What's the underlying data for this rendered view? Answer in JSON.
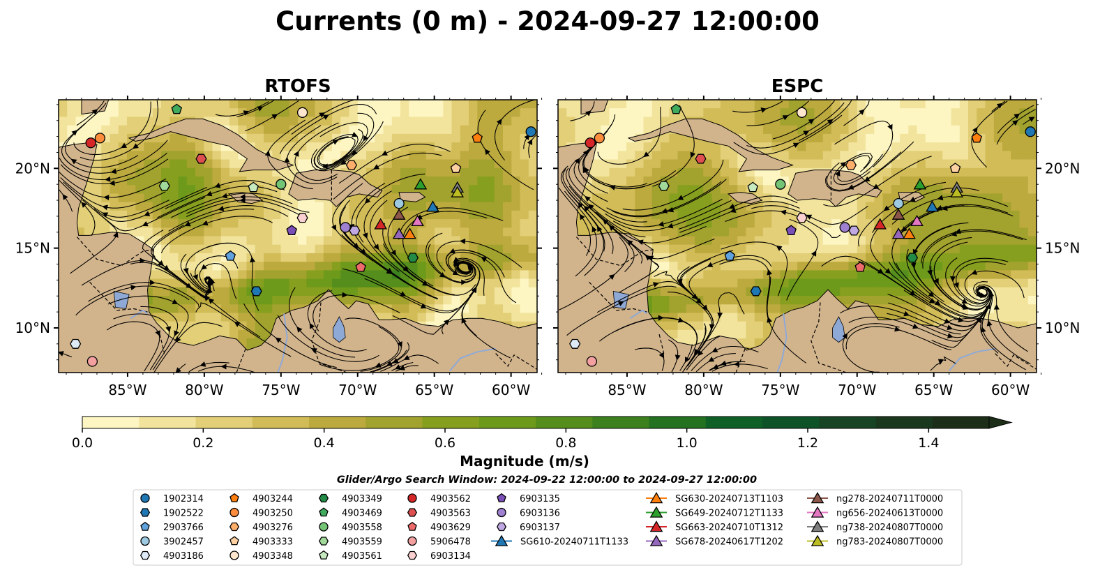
{
  "title": "Currents (0 m) - 2024-09-27 12:00:00",
  "panels": [
    "RTOFS",
    "ESPC"
  ],
  "colors": {
    "land": "#d2b48c",
    "river": "#8fa9d6",
    "cmap": [
      "#fdf6c3",
      "#f2e49d",
      "#e2cf77",
      "#d2bc58",
      "#bcaa3e",
      "#a2a22e",
      "#879f1e",
      "#6e9a1c",
      "#558e1c",
      "#3c811e",
      "#237121",
      "#0e6026",
      "#0e5228",
      "#174424",
      "#1a381e",
      "#1c2e18"
    ],
    "marker_palette": {
      "blue": "#1f77b4",
      "orange": "#ff7f0e",
      "green": "#2ca02c",
      "red": "#d62728",
      "purple": "#9467bd",
      "brown": "#8c564b",
      "pink": "#e377c2",
      "gray": "#7f7f7f",
      "olive": "#bcbd22",
      "dark_blue": "#1f77b4",
      "light_blue": "#aec7e8",
      "light_orange": "#ffbb78",
      "light_green": "#98df8a",
      "light_red": "#ff9896",
      "light_purple": "#c5b0d5",
      "light_pink": "#f7b6d2"
    }
  },
  "chart_data": {
    "type": "streamplot-map",
    "x_ticks": [
      "85°W",
      "80°W",
      "75°W",
      "70°W",
      "65°W",
      "60°W"
    ],
    "x_tick_values": [
      -85,
      -80,
      -75,
      -70,
      -65,
      -60
    ],
    "y_ticks": [
      "20°N",
      "15°N",
      "10°N"
    ],
    "y_tick_values": [
      20,
      15,
      10
    ],
    "xlim": [
      -89.5,
      -58.3
    ],
    "ylim": [
      7.2,
      24.3
    ],
    "colorbar": {
      "label": "Magnitude (m/s)",
      "ticks": [
        "0.0",
        "0.2",
        "0.4",
        "0.6",
        "0.8",
        "1.0",
        "1.2",
        "1.4"
      ],
      "tick_values": [
        0,
        0.2,
        0.4,
        0.6,
        0.8,
        1.0,
        1.2,
        1.4
      ],
      "range": [
        0,
        1.5
      ],
      "extend": "max"
    },
    "search_window": "Glider/Argo Search Window: 2024-09-22 12:00:00 to 2024-09-27 12:00:00",
    "legend_columns": [
      [
        {
          "label": "1902314",
          "shape": "circle",
          "color": "#1f77b4"
        },
        {
          "label": "1902522",
          "shape": "hexagon",
          "color": "#1f77b4"
        },
        {
          "label": "2903766",
          "shape": "pentagon",
          "color": "#5fa2dd"
        },
        {
          "label": "3902457",
          "shape": "circle",
          "color": "#9ecae1"
        },
        {
          "label": "4903186",
          "shape": "hexagon",
          "color": "#deebf7"
        }
      ],
      [
        {
          "label": "4903244",
          "shape": "pentagon",
          "color": "#ff7f0e"
        },
        {
          "label": "4903250",
          "shape": "circle",
          "color": "#fd8d3c"
        },
        {
          "label": "4903276",
          "shape": "hexagon",
          "color": "#fdae6b"
        },
        {
          "label": "4903333",
          "shape": "pentagon",
          "color": "#fdd0a2"
        },
        {
          "label": "4903348",
          "shape": "circle",
          "color": "#fee6ce"
        }
      ],
      [
        {
          "label": "4903349",
          "shape": "hexagon",
          "color": "#238b45"
        },
        {
          "label": "4903469",
          "shape": "pentagon",
          "color": "#41ab5d"
        },
        {
          "label": "4903558",
          "shape": "circle",
          "color": "#74c476"
        },
        {
          "label": "4903559",
          "shape": "hexagon",
          "color": "#a1d99b"
        },
        {
          "label": "4903561",
          "shape": "pentagon",
          "color": "#c7e9c0"
        }
      ],
      [
        {
          "label": "4903562",
          "shape": "circle",
          "color": "#d62728"
        },
        {
          "label": "4903563",
          "shape": "hexagon",
          "color": "#de4f4f"
        },
        {
          "label": "4903629",
          "shape": "pentagon",
          "color": "#ef6b6b"
        },
        {
          "label": "5906478",
          "shape": "circle",
          "color": "#f4a0a0"
        },
        {
          "label": "6903134",
          "shape": "hexagon",
          "color": "#fbd0d0"
        }
      ],
      [
        {
          "label": "6903135",
          "shape": "pentagon",
          "color": "#7b4fb8"
        },
        {
          "label": "6903136",
          "shape": "circle",
          "color": "#9e7fd0"
        },
        {
          "label": "6903137",
          "shape": "hexagon",
          "color": "#c0a8e2"
        },
        {
          "label": "SG610-20240711T1133",
          "shape": "triangle",
          "color": "#1f77b4",
          "line": true
        }
      ],
      [
        {
          "label": "SG630-20240713T1103",
          "shape": "triangle",
          "color": "#ff7f0e",
          "line": true
        },
        {
          "label": "SG649-20240712T1133",
          "shape": "triangle",
          "color": "#2ca02c",
          "line": true
        },
        {
          "label": "SG663-20240710T1312",
          "shape": "triangle",
          "color": "#d62728",
          "line": true
        },
        {
          "label": "SG678-20240617T1202",
          "shape": "triangle",
          "color": "#9467bd",
          "line": true
        }
      ],
      [
        {
          "label": "ng278-20240711T0000",
          "shape": "triangle",
          "color": "#8c564b",
          "line": true
        },
        {
          "label": "ng656-20240613T0000",
          "shape": "triangle",
          "color": "#e377c2",
          "line": true
        },
        {
          "label": "ng738-20240807T0000",
          "shape": "triangle",
          "color": "#7f7f7f",
          "line": true
        },
        {
          "label": "ng783-20240807T0000",
          "shape": "triangle",
          "color": "#bcbd22",
          "line": true
        }
      ]
    ],
    "platform_positions": [
      {
        "id": "1902314",
        "lon": -58.7,
        "lat": 22.3
      },
      {
        "id": "1902522",
        "lon": -76.6,
        "lat": 12.3
      },
      {
        "id": "2903766",
        "lon": -78.3,
        "lat": 14.5
      },
      {
        "id": "3902457",
        "lon": -67.3,
        "lat": 17.8
      },
      {
        "id": "4903186",
        "lon": -88.4,
        "lat": 9.0
      },
      {
        "id": "4903244",
        "lon": -62.2,
        "lat": 21.9
      },
      {
        "id": "4903250",
        "lon": -86.8,
        "lat": 21.9
      },
      {
        "id": "4903276",
        "lon": -70.4,
        "lat": 20.2
      },
      {
        "id": "4903333",
        "lon": -63.6,
        "lat": 20.0
      },
      {
        "id": "4903348",
        "lon": -73.6,
        "lat": 23.5
      },
      {
        "id": "4903349",
        "lon": -66.4,
        "lat": 14.4
      },
      {
        "id": "4903469",
        "lon": -81.8,
        "lat": 23.7
      },
      {
        "id": "4903558",
        "lon": -75.0,
        "lat": 19.0
      },
      {
        "id": "4903559",
        "lon": -82.6,
        "lat": 18.9
      },
      {
        "id": "4903561",
        "lon": -76.8,
        "lat": 18.8
      },
      {
        "id": "4903562",
        "lon": -87.4,
        "lat": 21.6
      },
      {
        "id": "4903563",
        "lon": -80.2,
        "lat": 20.6
      },
      {
        "id": "4903629",
        "lon": -69.8,
        "lat": 13.8
      },
      {
        "id": "5906478",
        "lon": -87.3,
        "lat": 7.9
      },
      {
        "id": "6903134",
        "lon": -73.6,
        "lat": 16.9
      },
      {
        "id": "6903135",
        "lon": -74.3,
        "lat": 16.1
      },
      {
        "id": "6903136",
        "lon": -70.8,
        "lat": 16.3
      },
      {
        "id": "6903137",
        "lon": -70.2,
        "lat": 16.1
      },
      {
        "id": "SG610-20240711T1133",
        "lon": -65.1,
        "lat": 17.6
      },
      {
        "id": "SG630-20240713T1103",
        "lon": -66.6,
        "lat": 15.9
      },
      {
        "id": "SG649-20240712T1133",
        "lon": -65.9,
        "lat": 19.0
      },
      {
        "id": "SG663-20240710T1312",
        "lon": -68.5,
        "lat": 16.5
      },
      {
        "id": "SG678-20240617T1202",
        "lon": -67.3,
        "lat": 15.9
      },
      {
        "id": "ng278-20240711T0000",
        "lon": -67.3,
        "lat": 17.1
      },
      {
        "id": "ng656-20240613T0000",
        "lon": -66.1,
        "lat": 16.7
      },
      {
        "id": "ng738-20240807T0000",
        "lon": -63.5,
        "lat": 18.8
      },
      {
        "id": "ng783-20240807T0000",
        "lon": -63.5,
        "lat": 18.5
      }
    ]
  }
}
